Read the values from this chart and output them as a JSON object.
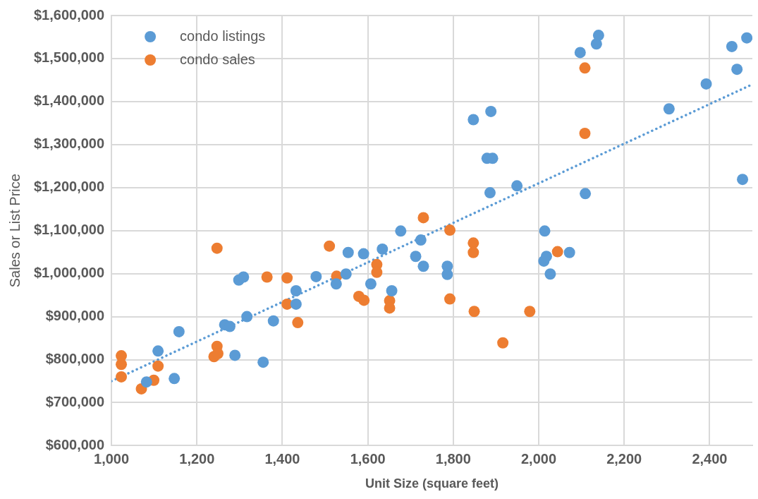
{
  "chart_data": {
    "type": "scatter",
    "xlabel": "Unit Size (square feet)",
    "ylabel": "Sales or List Price",
    "xlim": [
      1000,
      2500
    ],
    "ylim": [
      600000,
      1600000
    ],
    "xticks": [
      {
        "value": 1000,
        "label": "1,000"
      },
      {
        "value": 1200,
        "label": "1,200"
      },
      {
        "value": 1400,
        "label": "1,400"
      },
      {
        "value": 1600,
        "label": "1,600"
      },
      {
        "value": 1800,
        "label": "1,800"
      },
      {
        "value": 2000,
        "label": "2,000"
      },
      {
        "value": 2200,
        "label": "2,200"
      },
      {
        "value": 2400,
        "label": "2,400"
      }
    ],
    "yticks": [
      {
        "value": 600000,
        "label": "$600,000"
      },
      {
        "value": 700000,
        "label": "$700,000"
      },
      {
        "value": 800000,
        "label": "$800,000"
      },
      {
        "value": 900000,
        "label": "$900,000"
      },
      {
        "value": 1000000,
        "label": "$1,000,000"
      },
      {
        "value": 1100000,
        "label": "$1,100,000"
      },
      {
        "value": 1200000,
        "label": "$1,200,000"
      },
      {
        "value": 1300000,
        "label": "$1,300,000"
      },
      {
        "value": 1400000,
        "label": "$1,400,000"
      },
      {
        "value": 1500000,
        "label": "$1,500,000"
      },
      {
        "value": 1600000,
        "label": "$1,600,000"
      }
    ],
    "grid": true,
    "legend": "top left",
    "marker": "circle",
    "series": [
      {
        "name": "condo listings",
        "color": "#5b9bd5",
        "x": [
          1082,
          1109,
          1147,
          1158,
          1265,
          1277,
          1289,
          1298,
          1309,
          1317,
          1355,
          1379,
          1432,
          1432,
          1479,
          1526,
          1549,
          1554,
          1590,
          1607,
          1634,
          1656,
          1677,
          1712,
          1724,
          1730,
          1786,
          1786,
          1847,
          1879,
          1892,
          1886,
          1888,
          1949,
          2014,
          2012,
          2018,
          2027,
          2072,
          2097,
          2135,
          2140,
          2109,
          2305,
          2392,
          2452,
          2464,
          2477,
          2487
        ],
        "values": [
          748000,
          820000,
          756000,
          865000,
          881000,
          877000,
          810000,
          985000,
          992000,
          900000,
          794000,
          890000,
          960000,
          929000,
          993000,
          976000,
          999000,
          1049000,
          1046000,
          976000,
          1057000,
          960000,
          1099000,
          1040000,
          1078000,
          1017000,
          1017000,
          998000,
          1358000,
          1268000,
          1268000,
          1188000,
          1377000,
          1204000,
          1099000,
          1029000,
          1040000,
          999000,
          1049000,
          1514000,
          1534000,
          1554000,
          1186000,
          1383000,
          1441000,
          1528000,
          1475000,
          1219000,
          1548000
        ]
      },
      {
        "name": "condo sales",
        "color": "#ed7d31",
        "x": [
          1023,
          1023,
          1023,
          1070,
          1099,
          1109,
          1247,
          1247,
          1240,
          1249,
          1364,
          1411,
          1411,
          1436,
          1510,
          1527,
          1579,
          1591,
          1621,
          1621,
          1651,
          1651,
          1730,
          1792,
          1792,
          1847,
          1847,
          1849,
          1916,
          1979,
          2044,
          2108,
          2108
        ],
        "values": [
          809000,
          789000,
          760000,
          732000,
          752000,
          785000,
          1059000,
          831000,
          807000,
          814000,
          992000,
          990000,
          929000,
          886000,
          1064000,
          994000,
          947000,
          938000,
          1021000,
          1003000,
          937000,
          920000,
          1130000,
          1101000,
          941000,
          1071000,
          1049000,
          912000,
          839000,
          912000,
          1051000,
          1478000,
          1326000
        ]
      },
      {
        "type": "line",
        "color": "#5b9bd5",
        "marker": "none",
        "line_style": "dotted",
        "x": [
          1000,
          2500
        ],
        "values": [
          750000,
          1440000
        ]
      }
    ]
  }
}
